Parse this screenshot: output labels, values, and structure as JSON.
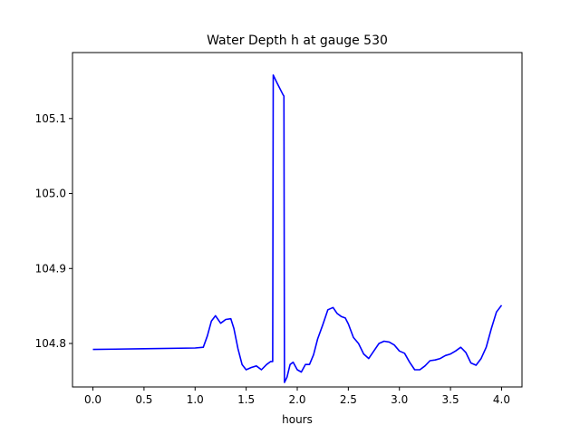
{
  "chart_data": {
    "type": "line",
    "title": "Water Depth h at gauge 530",
    "xlabel": "hours",
    "ylabel": "",
    "xlim": [
      -0.2,
      4.2
    ],
    "ylim": [
      104.742,
      105.188
    ],
    "xticks": [
      0.0,
      0.5,
      1.0,
      1.5,
      2.0,
      2.5,
      3.0,
      3.5,
      4.0
    ],
    "xtick_labels": [
      "0.0",
      "0.5",
      "1.0",
      "1.5",
      "2.0",
      "2.5",
      "3.0",
      "3.5",
      "4.0"
    ],
    "yticks": [
      104.8,
      104.9,
      105.0,
      105.1
    ],
    "ytick_labels": [
      "104.8",
      "104.9",
      "105.0",
      "105.1"
    ],
    "grid": false,
    "line_color": "#0000ff",
    "series": [
      {
        "x": [
          0.0,
          0.5,
          1.0,
          1.08,
          1.12,
          1.16,
          1.2,
          1.25,
          1.3,
          1.35,
          1.38,
          1.42,
          1.46,
          1.5,
          1.55,
          1.6,
          1.65,
          1.7,
          1.74,
          1.76,
          1.765,
          1.8,
          1.86,
          1.87,
          1.875,
          1.9,
          1.93,
          1.96,
          2.0,
          2.04,
          2.08,
          2.12,
          2.16,
          2.2,
          2.25,
          2.3,
          2.35,
          2.39,
          2.43,
          2.47,
          2.5,
          2.55,
          2.6,
          2.65,
          2.7,
          2.75,
          2.8,
          2.85,
          2.9,
          2.95,
          3.0,
          3.05,
          3.1,
          3.15,
          3.2,
          3.25,
          3.3,
          3.35,
          3.4,
          3.45,
          3.5,
          3.55,
          3.6,
          3.65,
          3.7,
          3.75,
          3.8,
          3.85,
          3.9,
          3.95,
          4.0
        ],
        "y": [
          104.792,
          104.793,
          104.794,
          104.795,
          104.81,
          104.83,
          104.837,
          104.827,
          104.832,
          104.833,
          104.82,
          104.793,
          104.772,
          104.765,
          104.768,
          104.77,
          104.765,
          104.772,
          104.776,
          104.776,
          105.158,
          105.148,
          105.132,
          105.13,
          104.748,
          104.755,
          104.772,
          104.775,
          104.765,
          104.762,
          104.772,
          104.772,
          104.785,
          104.806,
          104.825,
          104.845,
          104.848,
          104.84,
          104.836,
          104.834,
          104.826,
          104.808,
          104.8,
          104.786,
          104.78,
          104.79,
          104.8,
          104.803,
          104.802,
          104.798,
          104.79,
          104.787,
          104.775,
          104.765,
          104.765,
          104.77,
          104.777,
          104.778,
          104.78,
          104.784,
          104.786,
          104.79,
          104.795,
          104.788,
          104.774,
          104.771,
          104.78,
          104.795,
          104.82,
          104.842,
          104.851
        ]
      }
    ]
  }
}
